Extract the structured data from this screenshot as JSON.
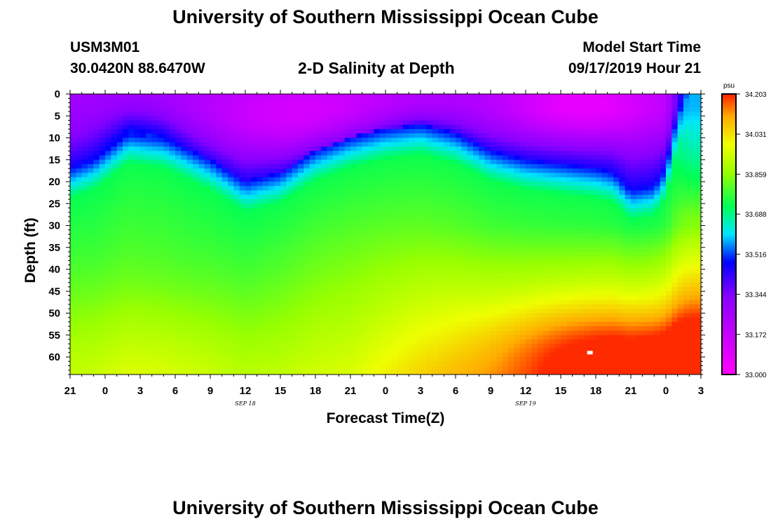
{
  "header": {
    "title": "University of Southern Mississippi Ocean Cube",
    "station_id": "USM3M01",
    "coords": "30.0420N 88.6470W",
    "plot_title": "2-D Salinity at Depth",
    "model_label": "Model Start Time",
    "model_time": "09/17/2019 Hour 21"
  },
  "footer": {
    "title": "University of Southern Mississippi Ocean Cube"
  },
  "chart_data": {
    "type": "heatmap",
    "title": "2-D Salinity at Depth",
    "xlabel": "Forecast Time(Z)",
    "ylabel": "Depth (ft)",
    "x_tick_labels": [
      "21",
      "0",
      "3",
      "6",
      "9",
      "12",
      "15",
      "18",
      "21",
      "0",
      "3",
      "6",
      "9",
      "12",
      "15",
      "18",
      "21",
      "0",
      "3"
    ],
    "x_hours": [
      0,
      3,
      6,
      9,
      12,
      15,
      18,
      21,
      24,
      27,
      30,
      33,
      36,
      39,
      42,
      45,
      48,
      51,
      54
    ],
    "date_labels": [
      {
        "text": "SEP 18",
        "hour": 15
      },
      {
        "text": "SEP 19",
        "hour": 39
      }
    ],
    "y_ticks": [
      0,
      5,
      10,
      15,
      20,
      25,
      30,
      35,
      40,
      45,
      50,
      55,
      60
    ],
    "ylim": [
      0,
      64
    ],
    "xlim": [
      0,
      54
    ],
    "colorbar": {
      "unit": "psu",
      "min": 33.0,
      "max": 34.203,
      "tick_labels": [
        "34.203",
        "34.031",
        "33.859",
        "33.688",
        "33.516",
        "33.344",
        "33.172",
        "33.000"
      ],
      "tick_values": [
        34.203,
        34.031,
        33.859,
        33.688,
        33.516,
        33.344,
        33.172,
        33.0
      ]
    },
    "halocline_depth_ft": {
      "hours": [
        0,
        2,
        5,
        8,
        12,
        15,
        18,
        21,
        24,
        27,
        30,
        33,
        36,
        39,
        42,
        45,
        46.5,
        48,
        50,
        51,
        52,
        53,
        54
      ],
      "depths": [
        17,
        15,
        9,
        10,
        15,
        20,
        18,
        13,
        10,
        8,
        7,
        9,
        13,
        15,
        16,
        17,
        18,
        22,
        21,
        17,
        5,
        0,
        0
      ]
    },
    "max_salinity_marker": {
      "hour": 44.5,
      "depth_ft": 59
    },
    "colors": {
      "low": "#ff00ff",
      "high": "#ff2200"
    }
  }
}
